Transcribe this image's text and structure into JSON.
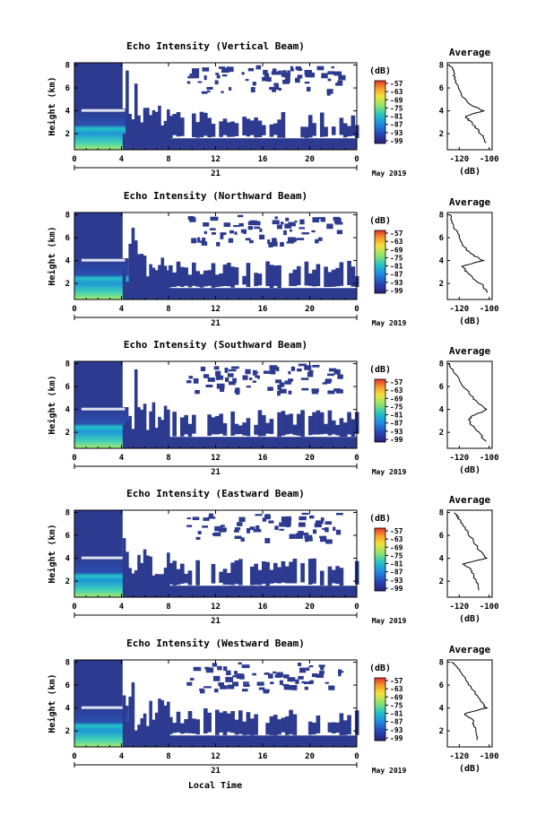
{
  "figure": {
    "xlabel": "Local Time",
    "day_label": "21",
    "month_label": "May 2019"
  },
  "colors": {
    "background_fill": "#2c3a8f",
    "echo_core": "#1a7fd6",
    "echo_mid": "#22c3c7",
    "echo_bright": "#9be87a",
    "band": "#ffffff"
  },
  "chart_data": [
    {
      "type": "heatmap",
      "title": "Echo Intensity (Vertical Beam)",
      "ylabel": "Height (km)",
      "x_ticks": [
        "0",
        "4",
        "8",
        "12",
        "16",
        "20",
        "0"
      ],
      "xlim": [
        0,
        24
      ],
      "y_ticks": [
        "2",
        "4",
        "6",
        "8"
      ],
      "ylim": [
        0.6,
        8.2
      ],
      "colorbar": {
        "unit": "(dB)",
        "ticks": [
          "-57",
          "-63",
          "-69",
          "-75",
          "-81",
          "-87",
          "-93",
          "-99"
        ]
      },
      "average": {
        "title": "Average",
        "xlabel": "(dB)",
        "x_ticks": [
          "-120",
          "-100"
        ],
        "xlim": [
          -128,
          -98
        ],
        "y_ticks": [
          "2",
          "4",
          "6",
          "8"
        ],
        "ylim": [
          0.6,
          8.2
        ],
        "profile": [
          [
            -102,
            1.2
          ],
          [
            -104,
            1.8
          ],
          [
            -108,
            2.4
          ],
          [
            -112,
            3.0
          ],
          [
            -116,
            3.5
          ],
          [
            -104,
            4.0
          ],
          [
            -112,
            4.5
          ],
          [
            -118,
            5.2
          ],
          [
            -121,
            6.0
          ],
          [
            -123,
            6.8
          ],
          [
            -124,
            7.5
          ],
          [
            -126,
            8.0
          ]
        ]
      }
    },
    {
      "type": "heatmap",
      "title": "Echo Intensity (Northward Beam)",
      "ylabel": "Height (km)",
      "x_ticks": [
        "0",
        "4",
        "8",
        "12",
        "16",
        "20",
        "0"
      ],
      "xlim": [
        0,
        24
      ],
      "y_ticks": [
        "2",
        "4",
        "6",
        "8"
      ],
      "ylim": [
        0.6,
        8.2
      ],
      "colorbar": {
        "unit": "(dB)",
        "ticks": [
          "-57",
          "-63",
          "-69",
          "-75",
          "-81",
          "-87",
          "-93",
          "-99"
        ]
      },
      "average": {
        "title": "Average",
        "xlabel": "(dB)",
        "x_ticks": [
          "-120",
          "-100"
        ],
        "xlim": [
          -128,
          -98
        ],
        "y_ticks": [
          "2",
          "4",
          "6",
          "8"
        ],
        "ylim": [
          0.6,
          8.2
        ],
        "profile": [
          [
            -101,
            1.2
          ],
          [
            -104,
            1.8
          ],
          [
            -110,
            2.4
          ],
          [
            -115,
            3.0
          ],
          [
            -118,
            3.5
          ],
          [
            -104,
            4.0
          ],
          [
            -111,
            4.5
          ],
          [
            -117,
            5.2
          ],
          [
            -120,
            6.0
          ],
          [
            -123,
            6.8
          ],
          [
            -125,
            7.5
          ],
          [
            -126,
            8.0
          ]
        ]
      }
    },
    {
      "type": "heatmap",
      "title": "Echo Intensity (Southward Beam)",
      "ylabel": "Height (km)",
      "x_ticks": [
        "0",
        "4",
        "8",
        "12",
        "16",
        "20",
        "0"
      ],
      "xlim": [
        0,
        24
      ],
      "y_ticks": [
        "2",
        "4",
        "6",
        "8"
      ],
      "ylim": [
        0.6,
        8.2
      ],
      "colorbar": {
        "unit": "(dB)",
        "ticks": [
          "-57",
          "-63",
          "-69",
          "-75",
          "-81",
          "-87",
          "-93",
          "-99"
        ]
      },
      "average": {
        "title": "Average",
        "xlabel": "(dB)",
        "x_ticks": [
          "-120",
          "-100"
        ],
        "xlim": [
          -128,
          -98
        ],
        "y_ticks": [
          "2",
          "4",
          "6",
          "8"
        ],
        "ylim": [
          0.6,
          8.2
        ],
        "profile": [
          [
            -102,
            1.2
          ],
          [
            -106,
            1.8
          ],
          [
            -110,
            2.4
          ],
          [
            -114,
            3.0
          ],
          [
            -112,
            3.4
          ],
          [
            -101,
            4.0
          ],
          [
            -108,
            4.6
          ],
          [
            -113,
            5.4
          ],
          [
            -118,
            6.2
          ],
          [
            -122,
            7.0
          ],
          [
            -125,
            7.6
          ],
          [
            -127,
            8.0
          ]
        ]
      }
    },
    {
      "type": "heatmap",
      "title": "Echo Intensity (Eastward Beam)",
      "ylabel": "Height (km)",
      "x_ticks": [
        "0",
        "4",
        "8",
        "12",
        "16",
        "20",
        "0"
      ],
      "xlim": [
        0,
        24
      ],
      "y_ticks": [
        "2",
        "4",
        "6",
        "8"
      ],
      "ylim": [
        0.6,
        8.2
      ],
      "colorbar": {
        "unit": "(dB)",
        "ticks": [
          "-57",
          "-63",
          "-69",
          "-75",
          "-81",
          "-87",
          "-93",
          "-99"
        ]
      },
      "average": {
        "title": "Average",
        "xlabel": "(dB)",
        "x_ticks": [
          "-120",
          "-100"
        ],
        "xlim": [
          -128,
          -98
        ],
        "y_ticks": [
          "2",
          "4",
          "6",
          "8"
        ],
        "ylim": [
          0.6,
          8.2
        ],
        "profile": [
          [
            -107,
            1.2
          ],
          [
            -108,
            1.8
          ],
          [
            -110,
            2.4
          ],
          [
            -112,
            3.0
          ],
          [
            -118,
            3.5
          ],
          [
            -102,
            4.0
          ],
          [
            -106,
            4.6
          ],
          [
            -110,
            5.4
          ],
          [
            -114,
            6.2
          ],
          [
            -118,
            7.0
          ],
          [
            -121,
            7.6
          ],
          [
            -123,
            8.0
          ]
        ]
      }
    },
    {
      "type": "heatmap",
      "title": "Echo Intensity (Westward Beam)",
      "ylabel": "Height (km)",
      "x_ticks": [
        "0",
        "4",
        "8",
        "12",
        "16",
        "20",
        "0"
      ],
      "xlim": [
        0,
        24
      ],
      "y_ticks": [
        "2",
        "4",
        "6",
        "8"
      ],
      "ylim": [
        0.6,
        8.2
      ],
      "colorbar": {
        "unit": "(dB)",
        "ticks": [
          "-57",
          "-63",
          "-69",
          "-75",
          "-81",
          "-87",
          "-93",
          "-99"
        ]
      },
      "average": {
        "title": "Average",
        "xlabel": "(dB)",
        "x_ticks": [
          "-120",
          "-100"
        ],
        "xlim": [
          -128,
          -98
        ],
        "y_ticks": [
          "2",
          "4",
          "6",
          "8"
        ],
        "ylim": [
          0.6,
          8.2
        ],
        "profile": [
          [
            -108,
            1.2
          ],
          [
            -109,
            1.8
          ],
          [
            -110,
            2.4
          ],
          [
            -111,
            3.0
          ],
          [
            -117,
            3.5
          ],
          [
            -102,
            4.0
          ],
          [
            -106,
            4.6
          ],
          [
            -110,
            5.4
          ],
          [
            -114,
            6.2
          ],
          [
            -118,
            7.0
          ],
          [
            -122,
            7.6
          ],
          [
            -125,
            8.0
          ]
        ]
      }
    }
  ]
}
